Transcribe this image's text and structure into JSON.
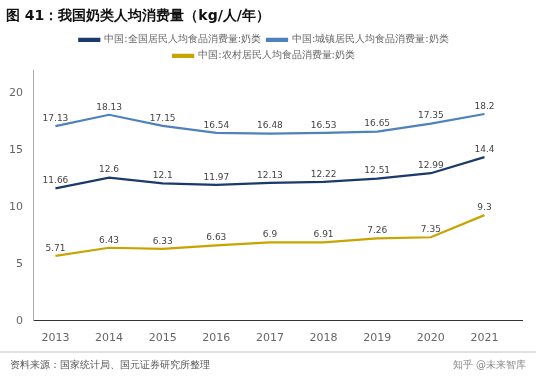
{
  "chart_data": {
    "type": "line",
    "title": "图 41：我国奶类人均消费量（kg/人/年）",
    "x": [
      2013,
      2014,
      2015,
      2016,
      2017,
      2018,
      2019,
      2020,
      2021
    ],
    "series": [
      {
        "name": "中国:全国居民人均食品消费量:奶类",
        "color": "#1a3a6b",
        "values": [
          11.66,
          12.6,
          12.1,
          11.97,
          12.13,
          12.22,
          12.51,
          12.99,
          14.4
        ]
      },
      {
        "name": "中国:城镇居民人均食品消费量:奶类",
        "color": "#4f81bd",
        "values": [
          17.13,
          18.13,
          17.15,
          16.54,
          16.48,
          16.53,
          16.65,
          17.35,
          18.2
        ]
      },
      {
        "name": "中国:农村居民人均食品消费量:奶类",
        "color": "#c8a400",
        "values": [
          5.71,
          6.43,
          6.33,
          6.63,
          6.9,
          6.91,
          7.26,
          7.35,
          9.3
        ]
      }
    ],
    "xlim": [
      2012.6,
      2021.7
    ],
    "xticks": [
      2013,
      2014,
      2015,
      2016,
      2017,
      2018,
      2019,
      2020,
      2021
    ],
    "ylim": [
      0,
      22
    ],
    "yticks": [
      0,
      5,
      10,
      15,
      20
    ],
    "grid": false,
    "legend": "top",
    "data_labels": true,
    "annotations": [
      "资料来源：国家统计局、国元证券研究所整理",
      "知乎 @未来智库"
    ]
  }
}
